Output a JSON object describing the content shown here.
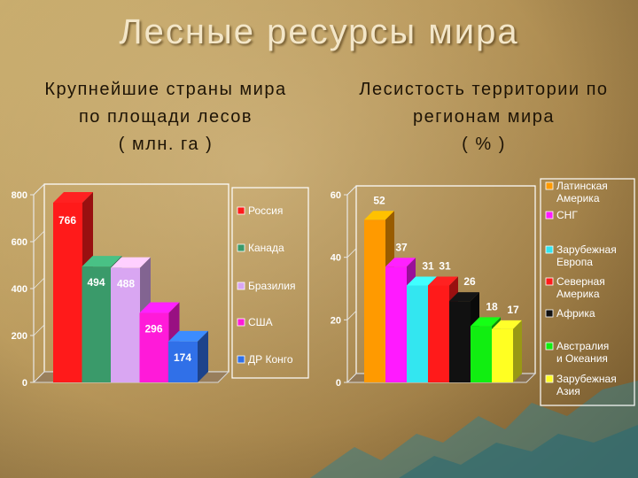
{
  "title": "Лесные ресурсы мира",
  "left": {
    "subtitle_lines": [
      "Крупнейшие страны мира",
      "по площади лесов",
      "( млн. га )"
    ]
  },
  "right": {
    "subtitle_lines": [
      "Лесистость территории по",
      "регионам мира",
      "( % )"
    ]
  },
  "chart_data": [
    {
      "type": "bar",
      "categories": [
        "Россия",
        "Канада",
        "Бразилия",
        "США",
        "ДР Конго"
      ],
      "values": [
        766,
        494,
        488,
        296,
        174
      ],
      "colors": [
        "#ff1a1a",
        "#3a9a6a",
        "#d9a6f2",
        "#ff1ad9",
        "#3070e8"
      ],
      "ylim": [
        0,
        800
      ],
      "yticks": [
        0,
        200,
        400,
        600,
        800
      ],
      "legend_position": "right",
      "data_labels": true,
      "grid": false
    },
    {
      "type": "bar",
      "categories": [
        "Латинская Америка",
        "СНГ",
        "Зарубежная Европа",
        "Северная Америка",
        "Африка",
        "Австралия и Океания",
        "Зарубежная Азия"
      ],
      "values": [
        52,
        37,
        31,
        31,
        26,
        18,
        17
      ],
      "colors": [
        "#ff9a00",
        "#ff1aff",
        "#33e6f0",
        "#ff1a1a",
        "#111111",
        "#11ee11",
        "#ffff22"
      ],
      "ylim": [
        0,
        60
      ],
      "yticks": [
        0,
        20,
        40,
        60
      ],
      "legend_position": "right",
      "data_labels": true,
      "grid": false
    }
  ]
}
